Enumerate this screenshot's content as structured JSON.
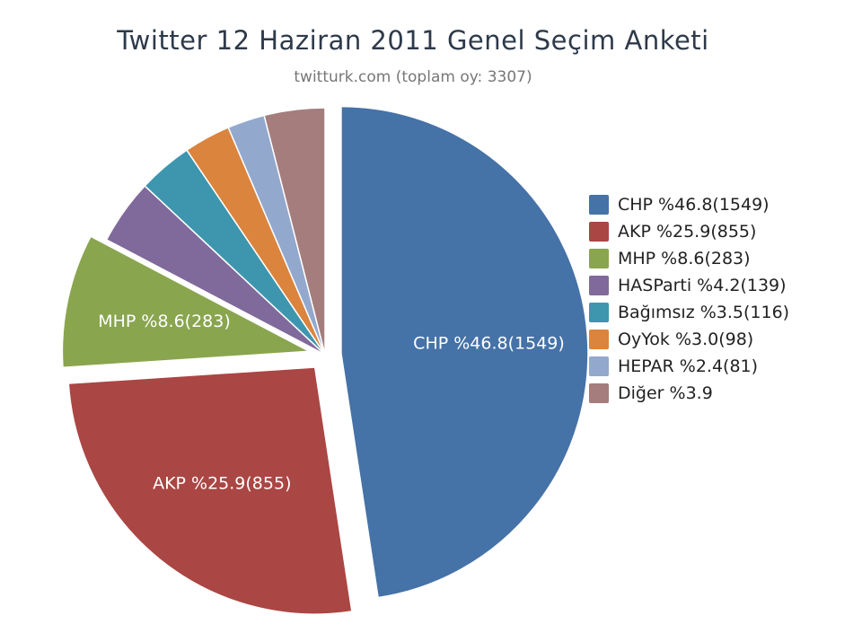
{
  "chart_data": {
    "type": "pie",
    "title": "Twitter 12 Haziran 2011 Genel Seçim Anketi",
    "subtitle": "twitturk.com (toplam oy: 3307)",
    "legend_position": "right",
    "slices": [
      {
        "name": "CHP",
        "percent": 46.8,
        "votes": 1549,
        "legend_label": "CHP %46.8(1549)",
        "slice_label": "CHP %46.8(1549)",
        "color": "#4572a7",
        "exploded": true
      },
      {
        "name": "AKP",
        "percent": 25.9,
        "votes": 855,
        "legend_label": "AKP %25.9(855)",
        "slice_label": "AKP %25.9(855)",
        "color": "#aa4643",
        "exploded": true
      },
      {
        "name": "MHP",
        "percent": 8.6,
        "votes": 283,
        "legend_label": "MHP %8.6(283)",
        "slice_label": "MHP %8.6(283)",
        "color": "#89a54e",
        "exploded": true
      },
      {
        "name": "HASParti",
        "percent": 4.2,
        "votes": 139,
        "legend_label": "HASParti %4.2(139)",
        "slice_label": "",
        "color": "#80699b",
        "exploded": false
      },
      {
        "name": "Bağımsız",
        "percent": 3.5,
        "votes": 116,
        "legend_label": "Bağımsız %3.5(116)",
        "slice_label": "",
        "color": "#3d96ae",
        "exploded": false
      },
      {
        "name": "OyYok",
        "percent": 3.0,
        "votes": 98,
        "legend_label": "OyYok %3.0(98)",
        "slice_label": "",
        "color": "#db843d",
        "exploded": false
      },
      {
        "name": "HEPAR",
        "percent": 2.4,
        "votes": 81,
        "legend_label": "HEPAR %2.4(81)",
        "slice_label": "",
        "color": "#92a8cd",
        "exploded": false
      },
      {
        "name": "Diğer",
        "percent": 3.9,
        "votes": null,
        "legend_label": "Diğer %3.9",
        "slice_label": "",
        "color": "#a47d7c",
        "exploded": false
      }
    ]
  }
}
